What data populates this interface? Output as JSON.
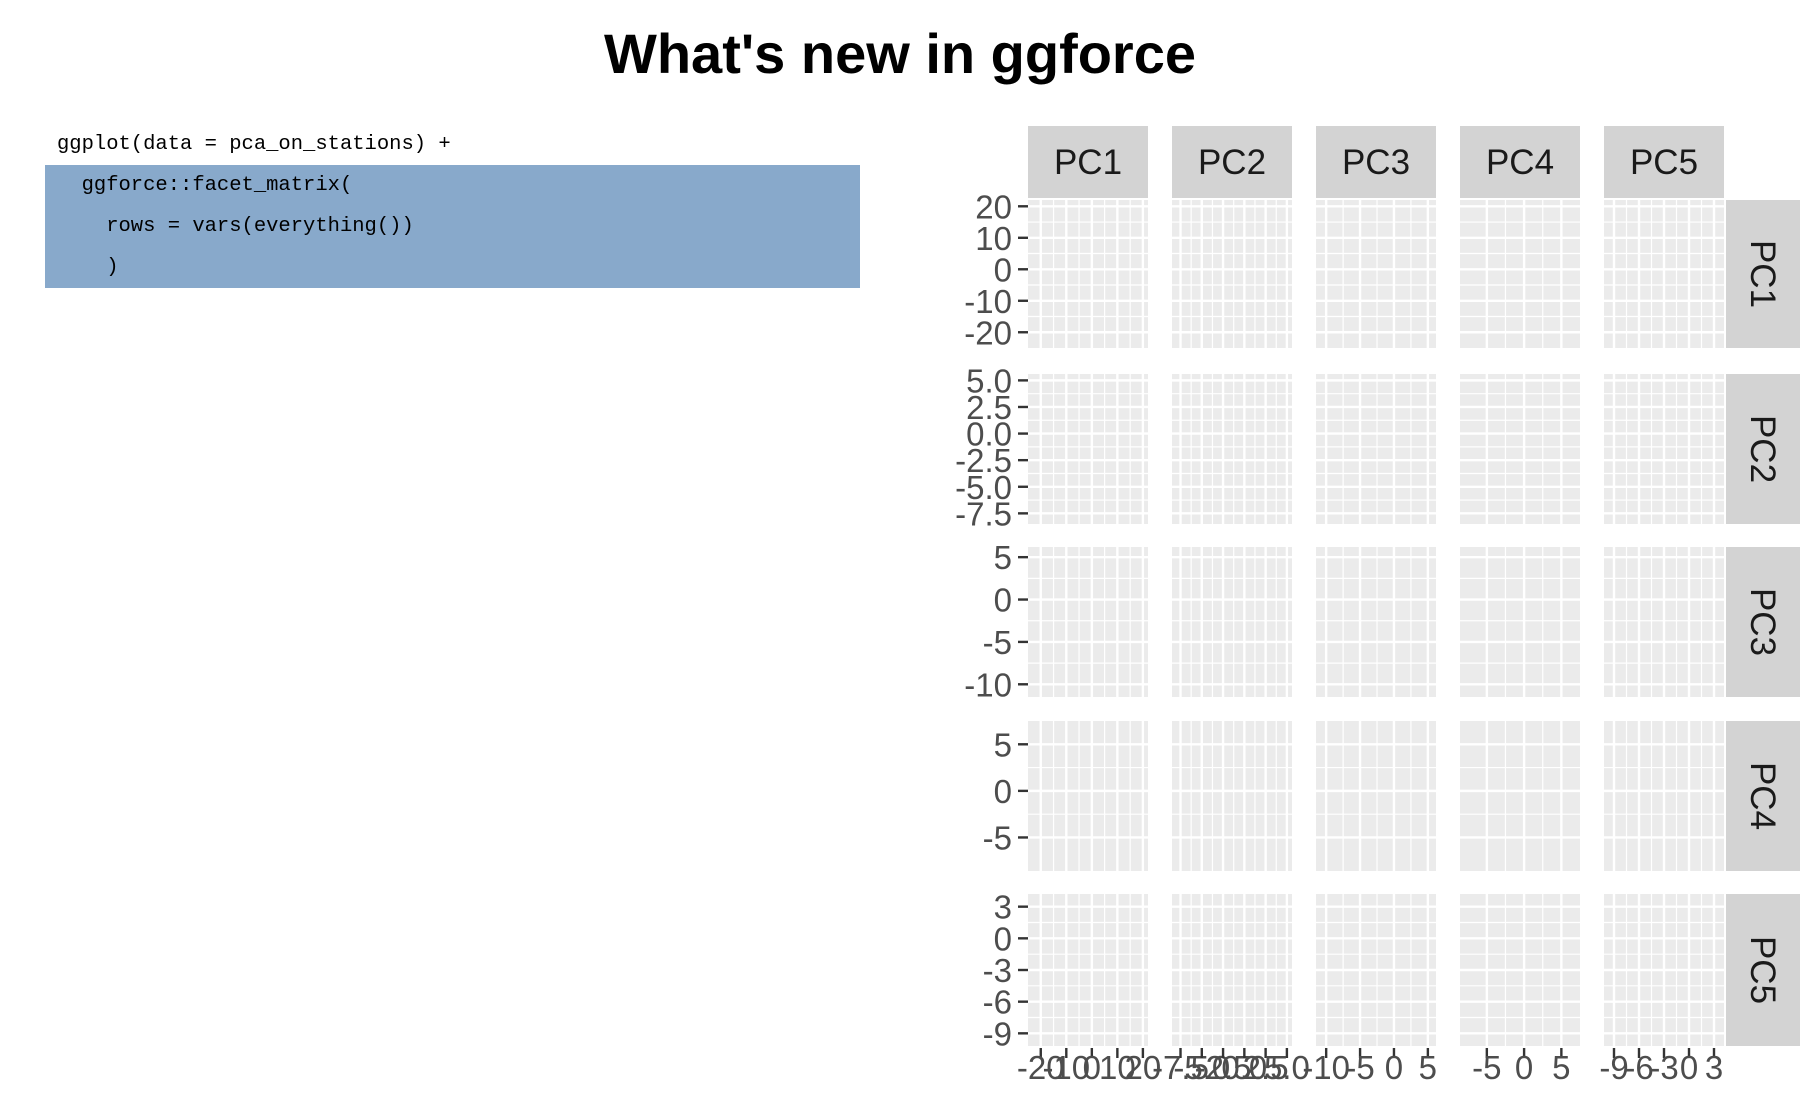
{
  "title": "What's new in ggforce",
  "code": {
    "lines": [
      {
        "text": "ggplot(data = pca_on_stations) +",
        "highlight": false
      },
      {
        "text": "  ggforce::facet_matrix(",
        "highlight": true
      },
      {
        "text": "    rows = vars(everything())",
        "highlight": true
      },
      {
        "text": "    )",
        "highlight": true
      }
    ]
  },
  "colors": {
    "highlight": "#88a9cb",
    "panel_bg": "#ebebeb",
    "strip_bg": "#d3d3d3",
    "grid": "#ffffff",
    "text": "#4d4d4d"
  },
  "chart_data": {
    "type": "scatter",
    "facet": "matrix",
    "column_labels": [
      "PC1",
      "PC2",
      "PC3",
      "PC4",
      "PC5"
    ],
    "row_labels": [
      "PC1",
      "PC2",
      "PC3",
      "PC4",
      "PC5"
    ],
    "y_axes": [
      {
        "range": [
          -25,
          22
        ],
        "ticks": [
          20,
          10,
          0,
          -10,
          -20
        ],
        "tick_labels": [
          "20",
          "10",
          "0",
          "-10",
          "-20"
        ]
      },
      {
        "range": [
          -8.5,
          5.6
        ],
        "ticks": [
          5,
          2.5,
          0,
          -2.5,
          -5,
          -7.5
        ],
        "tick_labels": [
          "5.0",
          "2.5",
          "0.0",
          "-2.5",
          "-5.0",
          "-7.5"
        ]
      },
      {
        "range": [
          -11.5,
          6.2
        ],
        "ticks": [
          5,
          0,
          -5,
          -10
        ],
        "tick_labels": [
          "5",
          "0",
          "-5",
          "-10"
        ]
      },
      {
        "range": [
          -8.6,
          7.5
        ],
        "ticks": [
          5,
          0,
          -5
        ],
        "tick_labels": [
          "5",
          "0",
          "-5"
        ]
      },
      {
        "range": [
          -10.2,
          4.2
        ],
        "ticks": [
          3,
          0,
          -3,
          -6,
          -9
        ],
        "tick_labels": [
          "3",
          "0",
          "-3",
          "-6",
          "-9"
        ]
      }
    ],
    "x_axes": [
      {
        "range": [
          -25,
          22
        ],
        "ticks": [
          -20,
          -10,
          0,
          10,
          20
        ],
        "tick_labels": [
          "-20",
          "-10",
          "0",
          "10",
          "20"
        ]
      },
      {
        "range": [
          -8.5,
          5.6
        ],
        "ticks": [
          -7.5,
          -5,
          -2.5,
          0,
          2.5,
          5
        ],
        "tick_labels": [
          "-7.5",
          "-5.0",
          "-2.5",
          "0.0",
          "2.5",
          "5.0"
        ]
      },
      {
        "range": [
          -11.5,
          6.2
        ],
        "ticks": [
          -10,
          -5,
          0,
          5
        ],
        "tick_labels": [
          "-10",
          "-5",
          "0",
          "5"
        ]
      },
      {
        "range": [
          -8.6,
          7.5
        ],
        "ticks": [
          -5,
          0,
          5
        ],
        "tick_labels": [
          "-5",
          "0",
          "5"
        ]
      },
      {
        "range": [
          -10.2,
          4.2
        ],
        "ticks": [
          -9,
          -6,
          -3,
          0,
          3
        ],
        "tick_labels": [
          "-9",
          "-6",
          "-3",
          "0",
          "3"
        ]
      }
    ],
    "points": [],
    "grid": true,
    "legend": "none"
  }
}
